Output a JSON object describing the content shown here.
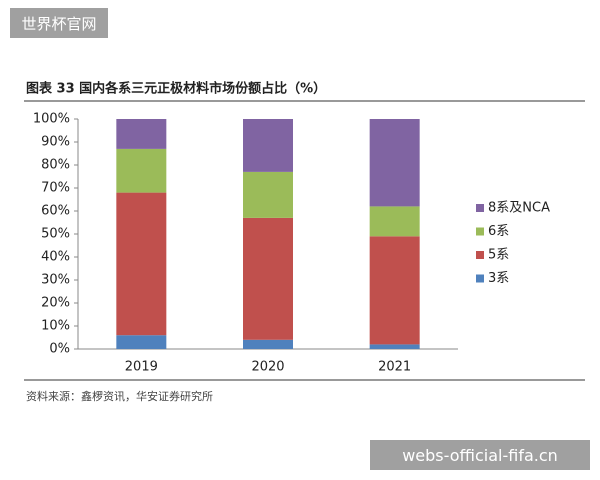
{
  "chart_data": {
    "type": "stacked-bar",
    "title": "图表 33 国内各系三元正极材料市场份额占比（%）",
    "source": "资料来源：鑫椤资讯，华安证券研究所",
    "categories": [
      "2019",
      "2020",
      "2021"
    ],
    "series": [
      {
        "name": "3系",
        "color": "#4f81bd",
        "values": [
          6,
          4,
          2
        ]
      },
      {
        "name": "5系",
        "color": "#c0504d",
        "values": [
          62,
          53,
          47
        ]
      },
      {
        "name": "6系",
        "color": "#9bbb59",
        "values": [
          19,
          20,
          13
        ]
      },
      {
        "name": "8系及NCA",
        "color": "#8064a2",
        "values": [
          13,
          23,
          38
        ]
      }
    ],
    "ylim": [
      0,
      100
    ],
    "yticks": [
      {
        "value": 0,
        "label": "0%"
      },
      {
        "value": 10,
        "label": "10%"
      },
      {
        "value": 20,
        "label": "20%"
      },
      {
        "value": 30,
        "label": "30%"
      },
      {
        "value": 40,
        "label": "40%"
      },
      {
        "value": 50,
        "label": "50%"
      },
      {
        "value": 60,
        "label": "60%"
      },
      {
        "value": 70,
        "label": "70%"
      },
      {
        "value": 80,
        "label": "80%"
      },
      {
        "value": 90,
        "label": "90%"
      },
      {
        "value": 100,
        "label": "100%"
      }
    ],
    "legend_position": "right"
  },
  "watermarks": [
    "世界杯官网",
    "webs-official-fifa.cn"
  ]
}
